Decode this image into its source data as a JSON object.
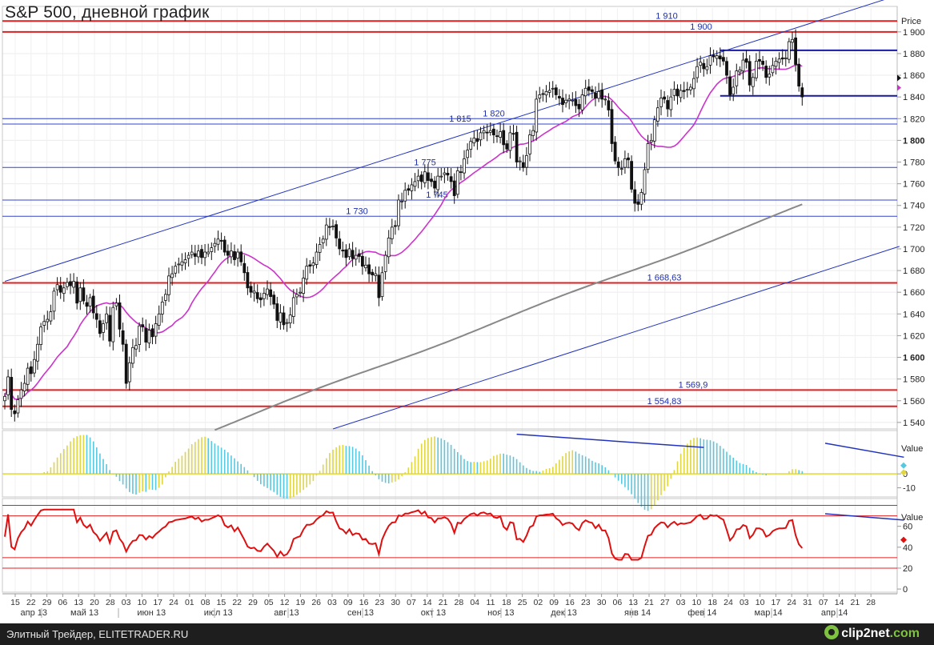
{
  "title": "S&P 500, дневной график",
  "footer": {
    "left": "Элитный Трейдер, ELITETRADER.RU",
    "logo_text": "clip2net",
    "logo_domain": ".com"
  },
  "chart_data": [
    {
      "type": "candlestick",
      "axis_title": "Price",
      "ylim": [
        1534,
        1922
      ],
      "y_ticks": [
        {
          "v": 1540,
          "label": "1 540"
        },
        {
          "v": 1560,
          "label": "1 560"
        },
        {
          "v": 1580,
          "label": "1 580"
        },
        {
          "v": 1600,
          "label": "1 600",
          "bold": true
        },
        {
          "v": 1620,
          "label": "1 620"
        },
        {
          "v": 1640,
          "label": "1 640"
        },
        {
          "v": 1660,
          "label": "1 660"
        },
        {
          "v": 1680,
          "label": "1 680"
        },
        {
          "v": 1700,
          "label": "1 700"
        },
        {
          "v": 1720,
          "label": "1 720"
        },
        {
          "v": 1740,
          "label": "1 740"
        },
        {
          "v": 1760,
          "label": "1 760"
        },
        {
          "v": 1780,
          "label": "1 780"
        },
        {
          "v": 1800,
          "label": "1 800",
          "bold": true
        },
        {
          "v": 1820,
          "label": "1 820"
        },
        {
          "v": 1840,
          "label": "1 840"
        },
        {
          "v": 1860,
          "label": "1 860"
        },
        {
          "v": 1880,
          "label": "1 880"
        },
        {
          "v": 1900,
          "label": "1 900"
        }
      ],
      "levels": [
        {
          "value": 1910,
          "label": "1 910",
          "color": "#e02020"
        },
        {
          "value": 1900,
          "label": "1 900",
          "color": "#e02020"
        },
        {
          "value": 1820,
          "label": "1 820",
          "color": "#3344cc"
        },
        {
          "value": 1815,
          "label": "1 815",
          "color": "#3344cc"
        },
        {
          "value": 1775,
          "label": "1 775",
          "color": "#3344cc"
        },
        {
          "value": 1745,
          "label": "1 745",
          "color": "#3344cc"
        },
        {
          "value": 1730,
          "label": "1 730",
          "color": "#3344cc"
        },
        {
          "value": 1668.63,
          "label": "1 668,63",
          "color": "#e02020"
        },
        {
          "value": 1569.9,
          "label": "1 569,9",
          "color": "#e02020"
        },
        {
          "value": 1554.83,
          "label": "1 554,83",
          "color": "#e02020"
        }
      ],
      "channel": {
        "upper": {
          "start": [
            0,
            1670
          ],
          "end": [
            258,
            1920
          ]
        },
        "lower": {
          "start": [
            100,
            1534
          ],
          "end": [
            258,
            1688
          ]
        }
      },
      "range_box": {
        "top": 1883,
        "bottom": 1841,
        "start": 218,
        "end": 258
      },
      "current_marker_value": 1850,
      "series": [
        {
          "name": "close",
          "values": [
            1564,
            1582,
            1552,
            1548,
            1561,
            1570,
            1576,
            1590,
            1585,
            1598,
            1612,
            1628,
            1633,
            1635,
            1642,
            1661,
            1667,
            1660,
            1664,
            1669,
            1666,
            1670,
            1650,
            1664,
            1652,
            1647,
            1655,
            1641,
            1635,
            1622,
            1631,
            1640,
            1615,
            1646,
            1650,
            1626,
            1612,
            1576,
            1595,
            1609,
            1611,
            1629,
            1628,
            1614,
            1625,
            1619,
            1631,
            1640,
            1651,
            1658,
            1675,
            1677,
            1684,
            1686,
            1688,
            1690,
            1694,
            1697,
            1693,
            1698,
            1692,
            1697,
            1697,
            1701,
            1705,
            1709,
            1707,
            1697,
            1694,
            1698,
            1690,
            1697,
            1688,
            1678,
            1664,
            1660,
            1661,
            1654,
            1653,
            1659,
            1663,
            1656,
            1649,
            1634,
            1641,
            1630,
            1632,
            1639,
            1655,
            1658,
            1660,
            1673,
            1684,
            1684,
            1687,
            1697,
            1704,
            1709,
            1722,
            1720,
            1721,
            1710,
            1700,
            1698,
            1692,
            1700,
            1691,
            1694,
            1693,
            1684,
            1685,
            1677,
            1676,
            1677,
            1655,
            1678,
            1694,
            1710,
            1720,
            1721,
            1745,
            1744,
            1754,
            1754,
            1759,
            1762,
            1767,
            1762,
            1771,
            1763,
            1762,
            1756,
            1767,
            1767,
            1770,
            1768,
            1762,
            1749,
            1772,
            1771,
            1783,
            1791,
            1799,
            1802,
            1799,
            1807,
            1809,
            1807,
            1809,
            1805,
            1804,
            1808,
            1796,
            1792,
            1807,
            1806,
            1780,
            1781,
            1775,
            1786,
            1805,
            1809,
            1838,
            1842,
            1843,
            1845,
            1846,
            1848,
            1842,
            1839,
            1833,
            1837,
            1838,
            1837,
            1832,
            1829,
            1842,
            1848,
            1846,
            1845,
            1839,
            1845,
            1838,
            1838,
            1828,
            1797,
            1781,
            1775,
            1774,
            1783,
            1782,
            1755,
            1742,
            1741,
            1752,
            1773,
            1797,
            1800,
            1819,
            1830,
            1839,
            1838,
            1829,
            1840,
            1847,
            1841,
            1846,
            1845,
            1847,
            1849,
            1857,
            1868,
            1872,
            1866,
            1868,
            1878,
            1877,
            1878,
            1875,
            1873,
            1860,
            1842,
            1849,
            1864,
            1865,
            1874,
            1872,
            1851,
            1858,
            1873,
            1873,
            1870,
            1858,
            1861,
            1869,
            1873,
            1875,
            1875,
            1876,
            1891,
            1893,
            1870,
            1850,
            1840
          ],
          "color": "#111111"
        },
        {
          "name": "ma_50",
          "color": "#cc33cc"
        },
        {
          "name": "ma_200",
          "color": "#888888"
        }
      ]
    },
    {
      "type": "histogram",
      "axis_title": "Value",
      "ylim": [
        -16,
        30
      ],
      "y_ticks": [
        {
          "v": 0,
          "label": "0"
        },
        {
          "v": -10,
          "label": "-10"
        }
      ],
      "divergence_lines": [
        {
          "start": [
            156,
            28.5
          ],
          "end": [
            213,
            19
          ]
        },
        {
          "start": [
            250,
            22
          ],
          "end": [
            274,
            12
          ]
        }
      ],
      "colors": {
        "rising": "#e0d640",
        "falling": "#58c8e0",
        "zero": "#e0d640"
      }
    },
    {
      "type": "line",
      "axis_title": "Value",
      "ylim": [
        -3,
        85
      ],
      "y_ticks": [
        {
          "v": 0,
          "label": "0"
        },
        {
          "v": 20,
          "label": "20"
        },
        {
          "v": 40,
          "label": "40"
        },
        {
          "v": 60,
          "label": "60"
        }
      ],
      "levels": [
        80,
        70,
        30,
        20
      ],
      "divergence_lines": [
        {
          "start": [
            250,
            72
          ],
          "end": [
            274,
            66
          ]
        }
      ],
      "color": "#dd1111"
    }
  ],
  "x_axis": {
    "day_labels": [
      "15",
      "22",
      "29",
      "06",
      "13",
      "20",
      "28",
      "03",
      "10",
      "17",
      "24",
      "01",
      "08",
      "15",
      "22",
      "29",
      "05",
      "12",
      "19",
      "26",
      "03",
      "09",
      "16",
      "23",
      "30",
      "07",
      "14",
      "21",
      "28",
      "04",
      "11",
      "18",
      "25",
      "02",
      "09",
      "16",
      "23",
      "30",
      "06",
      "13",
      "21",
      "27",
      "03",
      "10",
      "18",
      "24",
      "03",
      "10",
      "17",
      "24",
      "31",
      "07",
      "14",
      "21",
      "28"
    ],
    "month_labels": [
      "апр 13",
      "май 13",
      "июн 13",
      "июл 13",
      "авг 13",
      "сен 13",
      "окт 13",
      "ноя 13",
      "дек 13",
      "янв 14",
      "фев 14",
      "мар 14",
      "апр 14"
    ],
    "month_label_days": [
      3,
      18,
      38,
      58,
      79,
      101,
      123,
      143,
      162,
      184,
      203,
      223,
      243
    ]
  }
}
